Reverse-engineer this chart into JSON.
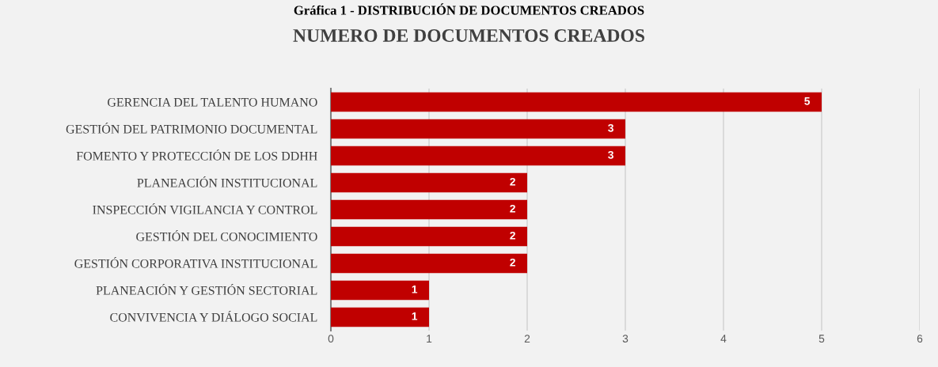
{
  "chart_data": {
    "type": "bar",
    "orientation": "horizontal",
    "title": "NUMERO DE DOCUMENTOS CREADOS",
    "annotations": [
      "Gráfica 1 - DISTRIBUCIÓN DE DOCUMENTOS CREADOS"
    ],
    "categories": [
      "GERENCIA DEL TALENTO HUMANO",
      "GESTIÓN DEL PATRIMONIO DOCUMENTAL",
      "FOMENTO Y PROTECCIÓN DE LOS DDHH",
      "PLANEACIÓN INSTITUCIONAL",
      "INSPECCIÓN VIGILANCIA Y CONTROL",
      "GESTIÓN DEL CONOCIMIENTO",
      "GESTIÓN CORPORATIVA INSTITUCIONAL",
      "PLANEACIÓN Y GESTIÓN SECTORIAL",
      "CONVIVENCIA Y DIÁLOGO SOCIAL"
    ],
    "values": [
      5,
      3,
      3,
      2,
      2,
      2,
      2,
      1,
      1
    ],
    "color": "#c00000",
    "xlim": [
      0,
      6
    ],
    "xticks": [
      0,
      1,
      2,
      3,
      4,
      5,
      6
    ],
    "grid": "x",
    "data_labels": true
  }
}
